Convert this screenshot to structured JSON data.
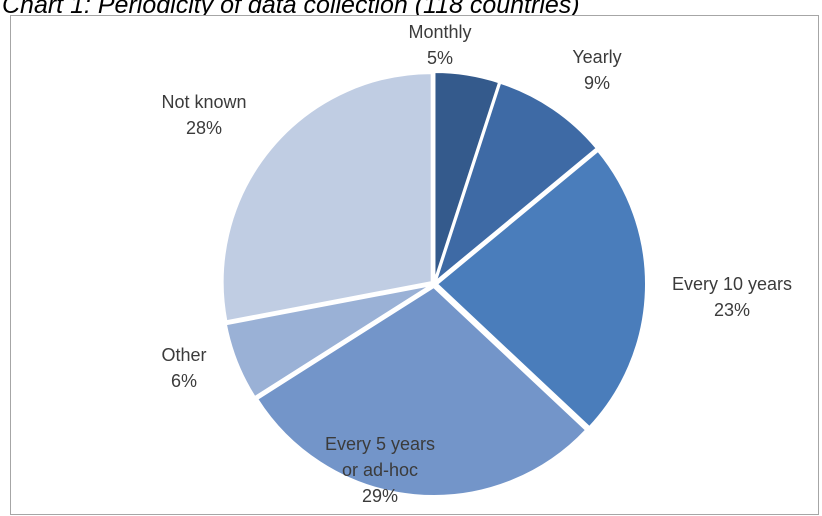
{
  "caption": "Chart 1: Periodicity of data collection (118 countries)",
  "chart_data": {
    "type": "pie",
    "title": "",
    "start_angle_deg": 0,
    "direction": "clockwise",
    "slices": [
      {
        "label_lines": [
          "Monthly"
        ],
        "pct_label": "5%",
        "value": 5,
        "color": "#345a8c"
      },
      {
        "label_lines": [
          "Yearly"
        ],
        "pct_label": "9%",
        "value": 9,
        "color": "#3e6aa5"
      },
      {
        "label_lines": [
          "Every 10 years"
        ],
        "pct_label": "23%",
        "value": 23,
        "color": "#4a7dbb"
      },
      {
        "label_lines": [
          "Every 5 years",
          "or ad-hoc"
        ],
        "pct_label": "29%",
        "value": 29,
        "color": "#7395c9"
      },
      {
        "label_lines": [
          "Other"
        ],
        "pct_label": "6%",
        "value": 6,
        "color": "#9ab1d6"
      },
      {
        "label_lines": [
          "Not known"
        ],
        "pct_label": "28%",
        "value": 28,
        "color": "#c0cde3"
      }
    ],
    "legend": "none"
  }
}
